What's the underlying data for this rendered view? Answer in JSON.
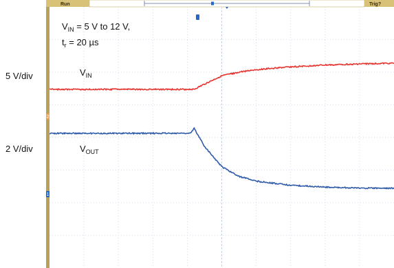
{
  "status_bar": {
    "run_label": "Run",
    "trig_label": "Trig?"
  },
  "side_labels": {
    "ch1_scale": "5 V/div",
    "ch2_scale": "2 V/div"
  },
  "channel_markers": {
    "ch1": "2",
    "ch2": "1"
  },
  "colors": {
    "vin_trace": "#e8332f",
    "vout_trace": "#2f5aa8",
    "grid": "#c9d3e0",
    "ruler": "#b8a25a",
    "status_bar": "#d8c278",
    "marker_orange": "#f3a040",
    "marker_blue": "#2468c8"
  },
  "chart_data": {
    "type": "line",
    "title": "",
    "annotation": {
      "line1_main": "V",
      "line1_sub": "IN",
      "line1_rest": " = 5 V to 12 V,",
      "line2_main": "t",
      "line2_sub": "r",
      "line2_rest": " = 20 µs"
    },
    "grid": true,
    "x_divisions": 10,
    "y_divisions": 8,
    "series": [
      {
        "name": "VIN",
        "label_main": "V",
        "label_sub": "IN",
        "x": [
          0,
          4.2,
          4.5,
          5.0,
          5.5,
          6.0,
          7.0,
          8.0,
          9.0,
          10.0
        ],
        "y": [
          5,
          5,
          6.4,
          8.6,
          9.6,
          10.3,
          11.0,
          11.5,
          11.8,
          12.0
        ]
      },
      {
        "name": "VOUT",
        "label_main": "V",
        "label_sub": "OUT",
        "x": [
          0,
          4.1,
          4.2,
          4.5,
          5.0,
          5.5,
          6.0,
          7.0,
          8.0,
          9.0,
          10.0
        ],
        "y": [
          5.3,
          5.3,
          5.7,
          4.2,
          2.5,
          1.7,
          1.3,
          0.95,
          0.8,
          0.72,
          0.7
        ]
      }
    ]
  }
}
